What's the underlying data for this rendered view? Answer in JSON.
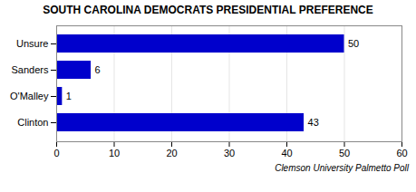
{
  "chart_data": {
    "type": "bar",
    "orientation": "horizontal",
    "title": "SOUTH CAROLINA DEMOCRATS PRESIDENTIAL PREFERENCE",
    "categories": [
      "Clinton",
      "O'Malley",
      "Sanders",
      "Unsure"
    ],
    "values": [
      43,
      1,
      6,
      50
    ],
    "color": "#0000CC",
    "xlim": [
      0,
      60
    ],
    "xticks": [
      0,
      10,
      20,
      30,
      40,
      50,
      60
    ],
    "grid": true,
    "data_labels": true,
    "annotations": [
      "Clemson University Palmetto Poll"
    ]
  }
}
